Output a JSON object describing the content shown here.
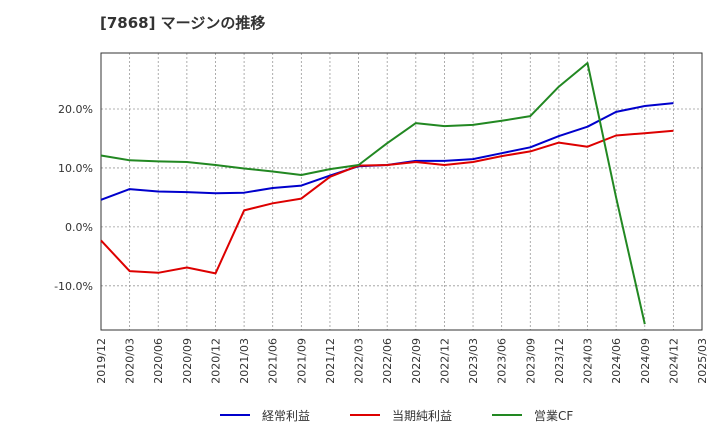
{
  "chart_data": {
    "type": "line",
    "title": "[7868]  マージンの推移",
    "x": [
      "2019/12",
      "2020/03",
      "2020/06",
      "2020/09",
      "2020/12",
      "2021/03",
      "2021/06",
      "2021/09",
      "2021/12",
      "2022/03",
      "2022/06",
      "2022/09",
      "2022/12",
      "2023/03",
      "2023/06",
      "2023/09",
      "2023/12",
      "2024/03",
      "2024/06",
      "2024/09",
      "2024/12",
      "2025/03"
    ],
    "y_ticks": [
      "20.0%",
      "10.0%",
      "0.0%",
      "-10.0%"
    ],
    "y_tick_values": [
      20,
      10,
      0,
      -10
    ],
    "ylim": [
      -17.5,
      29.5
    ],
    "grid": true,
    "legend_position": "bottom",
    "series": [
      {
        "name": "経常利益",
        "color": "#0000cc",
        "values": [
          4.6,
          6.4,
          6.0,
          5.9,
          5.7,
          5.8,
          6.6,
          7.0,
          8.7,
          10.3,
          10.5,
          11.2,
          11.2,
          11.5,
          12.5,
          13.5,
          15.4,
          17.0,
          19.5,
          20.5,
          21.0,
          null
        ]
      },
      {
        "name": "当期純利益",
        "color": "#dd0000",
        "values": [
          -2.3,
          -7.5,
          -7.8,
          -6.9,
          -7.9,
          2.8,
          4.0,
          4.8,
          8.5,
          10.4,
          10.5,
          11.0,
          10.5,
          11.0,
          12.0,
          12.8,
          14.3,
          13.6,
          15.5,
          15.9,
          16.3,
          null
        ]
      },
      {
        "name": "営業CF",
        "color": "#228822",
        "values": [
          12.1,
          11.3,
          11.1,
          11.0,
          10.5,
          9.9,
          9.4,
          8.8,
          9.8,
          10.5,
          14.2,
          17.6,
          17.1,
          17.3,
          18.0,
          18.8,
          23.8,
          27.8,
          5.0,
          -16.5,
          null,
          null
        ]
      }
    ]
  }
}
